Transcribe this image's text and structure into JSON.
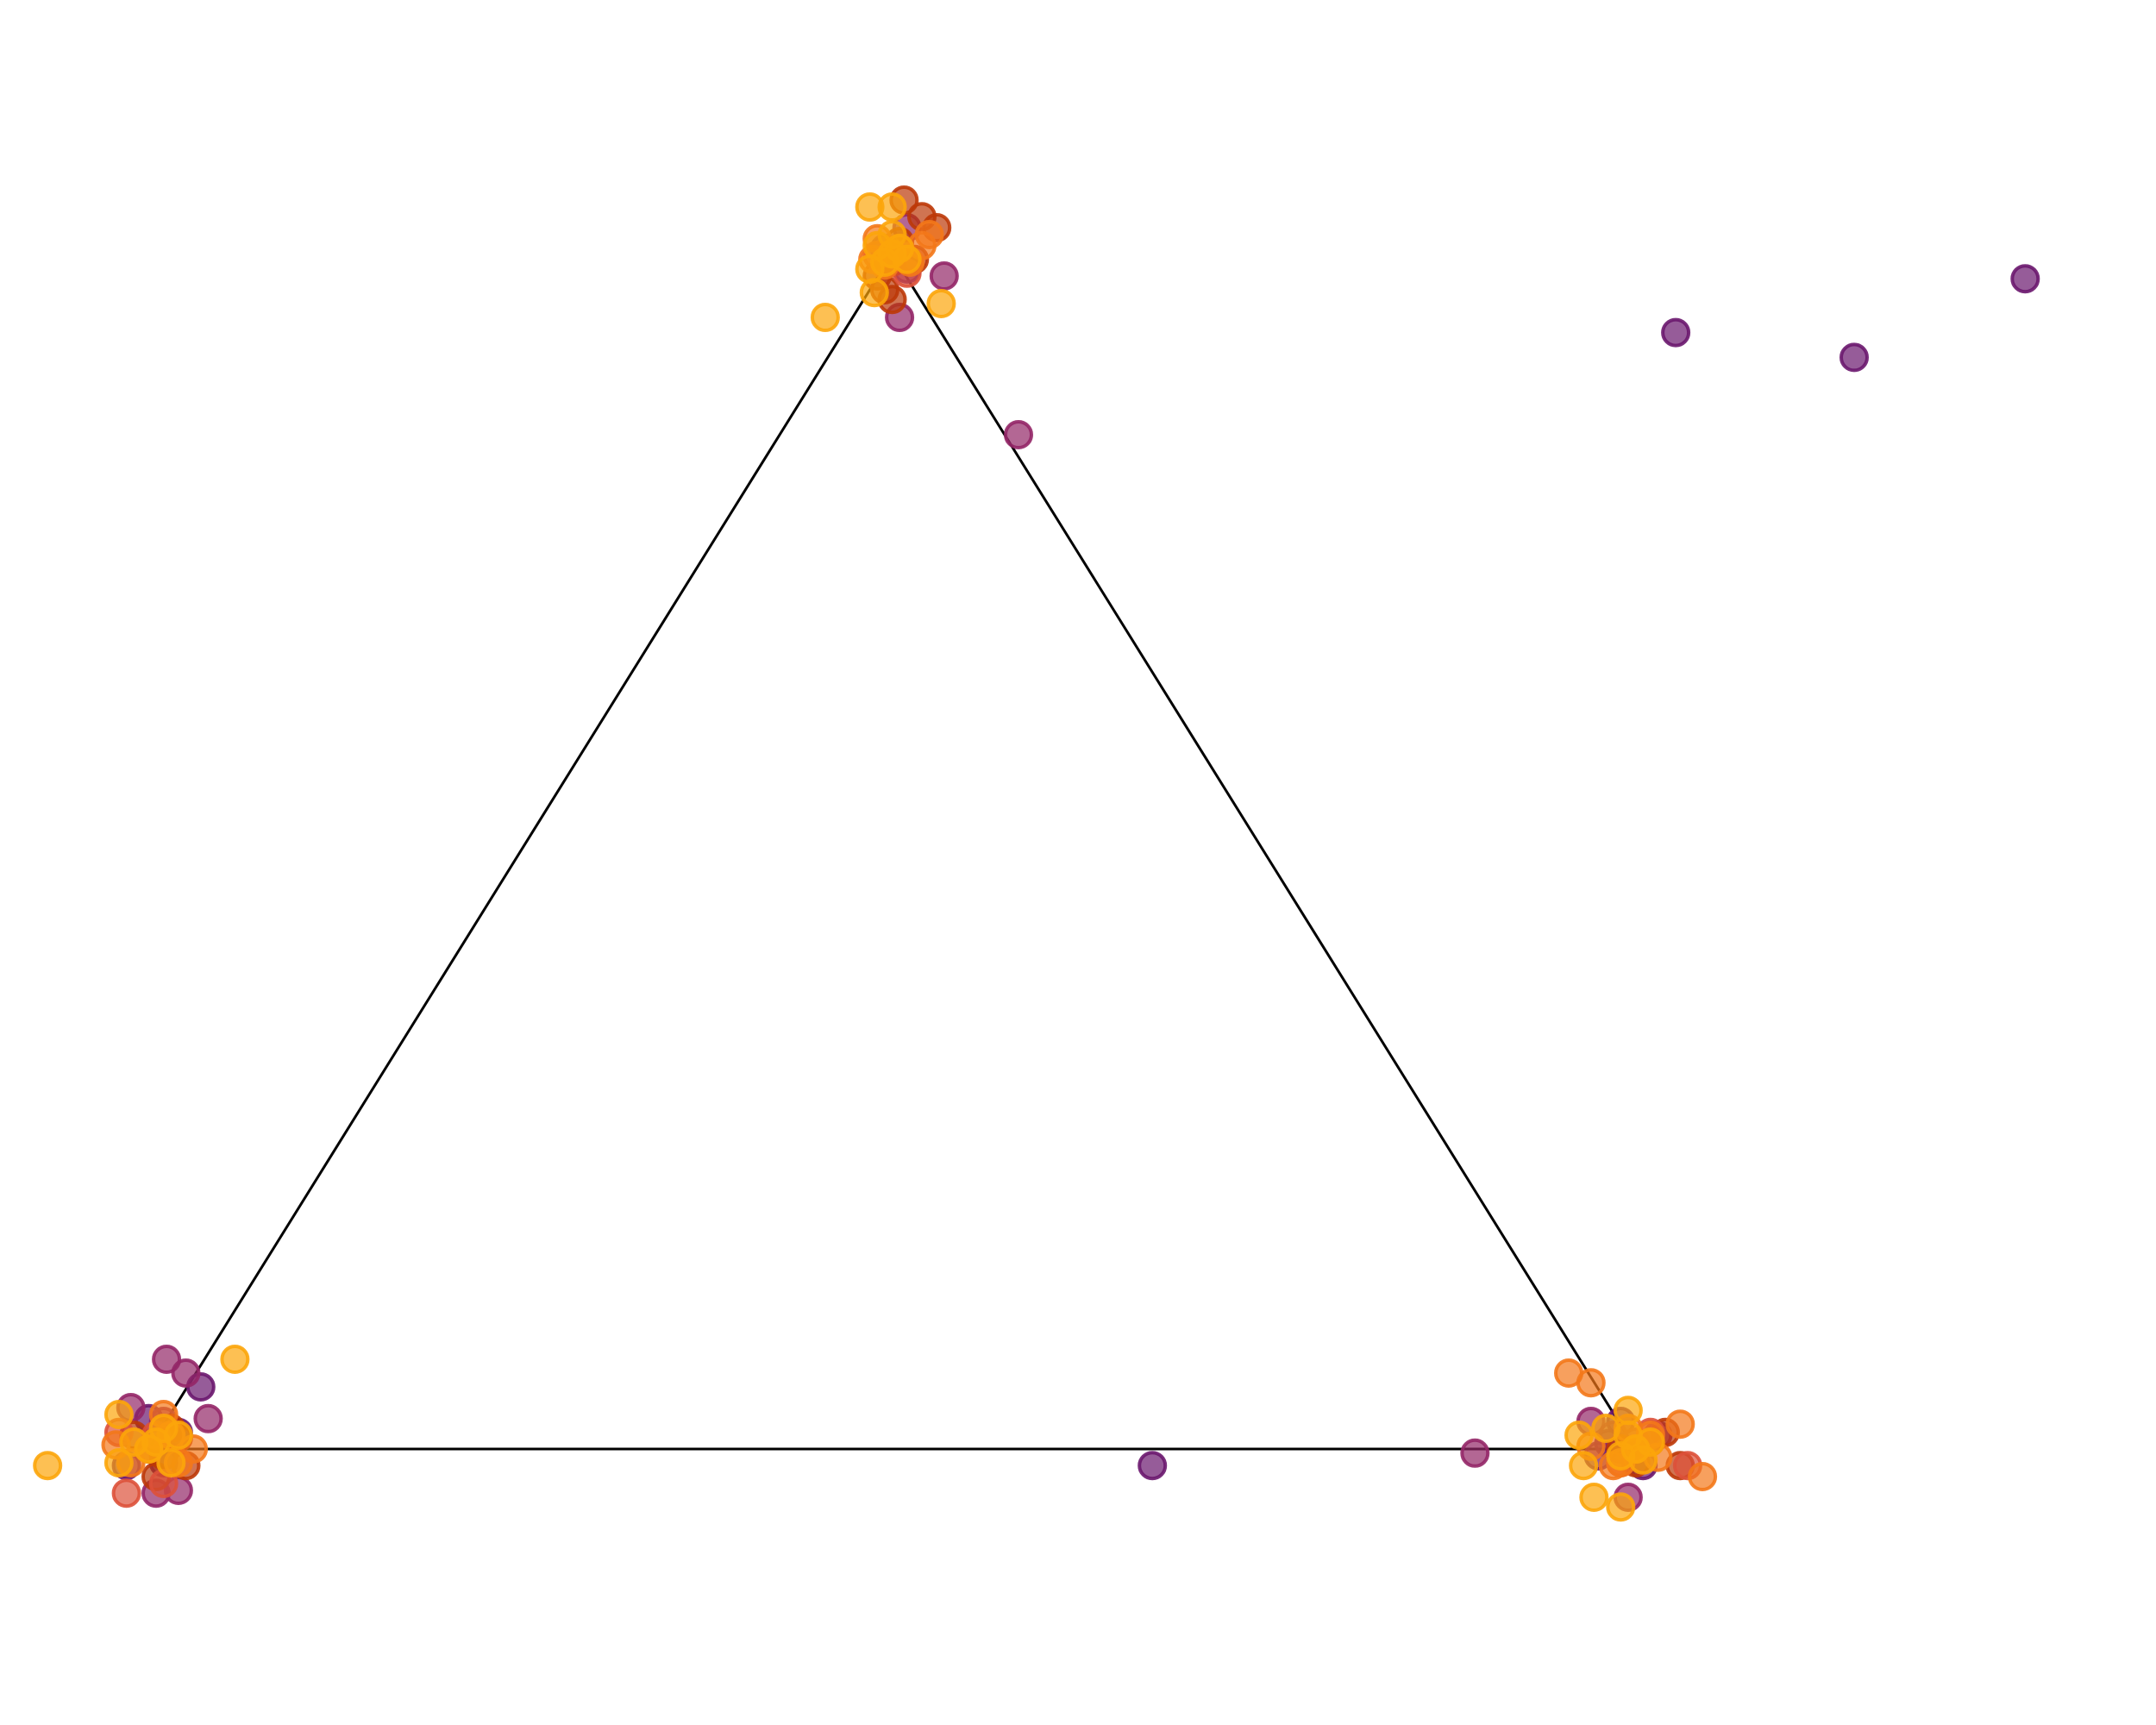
{
  "chart_data": {
    "type": "scatter",
    "title": "",
    "xlabel": "",
    "ylabel": "",
    "grid": false,
    "axes_visible": false,
    "xlim": [
      -0.1,
      1.35
    ],
    "ylim": [
      -0.2,
      1.05
    ],
    "simplex": {
      "vertices": [
        [
          0,
          0
        ],
        [
          1,
          0
        ],
        [
          0.5,
          0.866
        ]
      ],
      "edge_color": "#000000"
    },
    "marker": {
      "shape": "circle",
      "opacity": 0.7
    },
    "series": [
      {
        "color": "#6a176e",
        "points": [
          [
            0.005,
            0.005
          ],
          [
            0.01,
            -0.01
          ],
          [
            0.02,
            0.012
          ],
          [
            0.035,
            0.045
          ],
          [
            -0.015,
            -0.012
          ],
          [
            0.0,
            0.022
          ],
          [
            0.982,
            0.004
          ],
          [
            0.99,
            0.02
          ],
          [
            0.975,
            -0.005
          ],
          [
            1.005,
            -0.012
          ],
          [
            0.5,
            0.86
          ],
          [
            0.51,
            0.855
          ],
          [
            0.495,
            0.87
          ],
          [
            0.675,
            -0.012
          ],
          [
            1.027,
            0.809
          ],
          [
            1.147,
            0.791
          ],
          [
            1.262,
            0.848
          ]
        ]
      },
      {
        "color": "#932667",
        "points": [
          [
            0.01,
            0.02
          ],
          [
            0.025,
            0.055
          ],
          [
            0.04,
            0.022
          ],
          [
            -0.012,
            0.03
          ],
          [
            0.005,
            -0.032
          ],
          [
            0.02,
            -0.03
          ],
          [
            0.012,
            0.065
          ],
          [
            1.0,
            0.005
          ],
          [
            0.995,
            -0.035
          ],
          [
            1.015,
            0.01
          ],
          [
            0.985,
            0.01
          ],
          [
            0.97,
            0.02
          ],
          [
            0.51,
            0.885
          ],
          [
            0.535,
            0.85
          ],
          [
            0.505,
            0.82
          ],
          [
            0.585,
            0.735
          ],
          [
            0.892,
            -0.003
          ]
        ]
      },
      {
        "color": "#bc3908",
        "points": [
          [
            0.0,
            0.0
          ],
          [
            0.01,
            -0.005
          ],
          [
            0.02,
            0.008
          ],
          [
            -0.01,
            0.01
          ],
          [
            0.005,
            -0.02
          ],
          [
            0.015,
            0.015
          ],
          [
            0.025,
            -0.012
          ],
          [
            0.99,
            0.0
          ],
          [
            1.0,
            -0.01
          ],
          [
            1.01,
            0.005
          ],
          [
            1.02,
            0.012
          ],
          [
            1.03,
            -0.012
          ],
          [
            0.5,
            0.86
          ],
          [
            0.505,
            0.875
          ],
          [
            0.49,
            0.85
          ],
          [
            0.515,
            0.862
          ],
          [
            0.495,
            0.84
          ],
          [
            0.5,
            0.833
          ],
          [
            0.53,
            0.885
          ],
          [
            0.52,
            0.893
          ],
          [
            0.508,
            0.905
          ]
        ]
      },
      {
        "color": "#dd513a",
        "points": [
          [
            0.005,
            0.01
          ],
          [
            -0.02,
            0.012
          ],
          [
            -0.015,
            -0.032
          ],
          [
            0.01,
            -0.025
          ],
          [
            1.0,
            0.0
          ],
          [
            1.01,
            0.012
          ],
          [
            0.99,
            -0.01
          ],
          [
            1.035,
            -0.012
          ],
          [
            0.49,
            0.865
          ],
          [
            0.51,
            0.852
          ]
        ]
      },
      {
        "color": "#f37819",
        "points": [
          [
            0.0,
            0.0
          ],
          [
            0.015,
            0.01
          ],
          [
            0.02,
            -0.01
          ],
          [
            -0.012,
            -0.01
          ],
          [
            0.01,
            0.025
          ],
          [
            -0.022,
            0.003
          ],
          [
            0.03,
            0.0
          ],
          [
            1.0,
            0.0
          ],
          [
            1.01,
            0.01
          ],
          [
            0.99,
            -0.01
          ],
          [
            0.995,
            0.015
          ],
          [
            1.015,
            -0.006
          ],
          [
            1.03,
            0.018
          ],
          [
            1.045,
            -0.02
          ],
          [
            0.955,
            0.055
          ],
          [
            0.97,
            0.048
          ],
          [
            0.97,
            0.002
          ],
          [
            0.985,
            -0.012
          ],
          [
            0.5,
            0.866
          ],
          [
            0.505,
            0.87
          ],
          [
            0.495,
            0.858
          ],
          [
            0.512,
            0.86
          ],
          [
            0.487,
            0.862
          ],
          [
            0.52,
            0.872
          ],
          [
            0.49,
            0.877
          ],
          [
            0.525,
            0.88
          ]
        ]
      },
      {
        "color": "#fca50a",
        "points": [
          [
            0.0,
            0.0
          ],
          [
            0.02,
            0.01
          ],
          [
            -0.01,
            0.005
          ],
          [
            0.015,
            -0.01
          ],
          [
            0.01,
            0.015
          ],
          [
            -0.02,
            -0.01
          ],
          [
            0.005,
            0.005
          ],
          [
            -0.02,
            0.025
          ],
          [
            -0.068,
            -0.012
          ],
          [
            0.058,
            0.065
          ],
          [
            1.0,
            0.0
          ],
          [
            1.01,
            0.005
          ],
          [
            0.99,
            -0.005
          ],
          [
            0.995,
            0.01
          ],
          [
            1.005,
            -0.008
          ],
          [
            0.98,
            0.015
          ],
          [
            0.962,
            0.01
          ],
          [
            0.965,
            -0.012
          ],
          [
            0.972,
            -0.035
          ],
          [
            0.99,
            -0.042
          ],
          [
            0.995,
            0.028
          ],
          [
            0.5,
            0.866
          ],
          [
            0.505,
            0.87
          ],
          [
            0.495,
            0.86
          ],
          [
            0.51,
            0.862
          ],
          [
            0.49,
            0.872
          ],
          [
            0.485,
            0.855
          ],
          [
            0.5,
            0.88
          ],
          [
            0.488,
            0.838
          ],
          [
            0.533,
            0.83
          ],
          [
            0.455,
            0.82
          ],
          [
            0.485,
            0.9
          ],
          [
            0.5,
            0.9
          ]
        ]
      }
    ]
  }
}
